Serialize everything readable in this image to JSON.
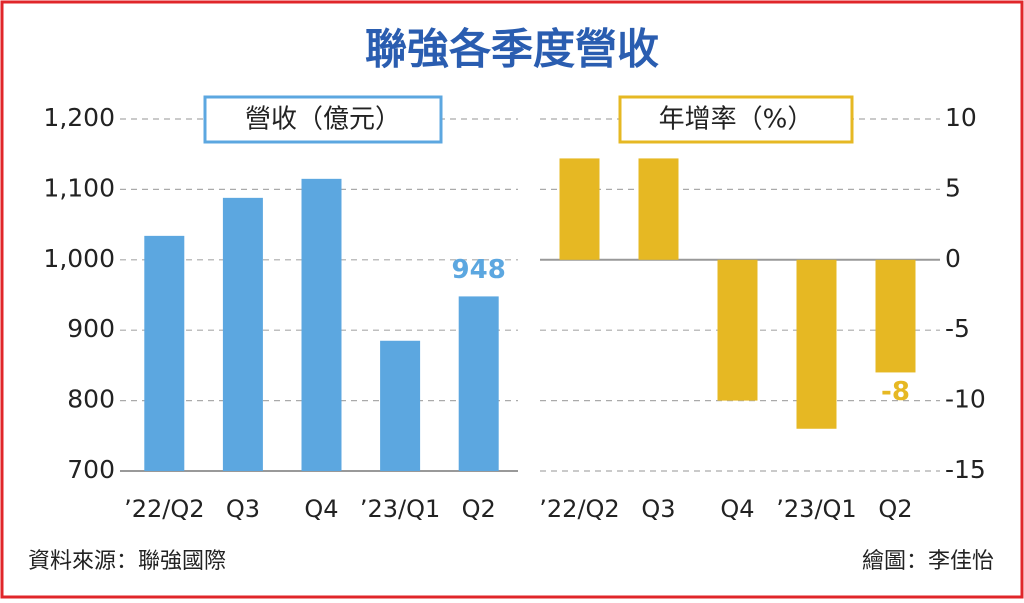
{
  "title": "聯強各季度營收",
  "chart_data": [
    {
      "type": "bar",
      "title": "營收（億元）",
      "categories": [
        "’22/Q2",
        "Q3",
        "Q4",
        "’23/Q1",
        "Q2"
      ],
      "values": [
        1034,
        1088,
        1115,
        885,
        948
      ],
      "color": "#5ca7e0",
      "ylim": [
        700,
        1200
      ],
      "yticks": [
        700,
        800,
        900,
        {
          "value": 1000,
          "label": "1,000"
        },
        {
          "value": 1100,
          "label": "1,100"
        },
        {
          "value": 1200,
          "label": "1,200"
        }
      ],
      "grid": true
    },
    {
      "type": "bar",
      "title": "年增率（%）",
      "categories": [
        "’22/Q2",
        "Q3",
        "Q4",
        "’23/Q1",
        "Q2"
      ],
      "values": [
        7.2,
        7.2,
        -10,
        -12,
        -8
      ],
      "color": "#e6b823",
      "ylim": [
        -15,
        10
      ],
      "yticks": [
        -15,
        -10,
        -5,
        0,
        5,
        10
      ],
      "grid": true
    }
  ],
  "source": "資料來源：聯強國際",
  "credit": "繪圖：李佳怡"
}
